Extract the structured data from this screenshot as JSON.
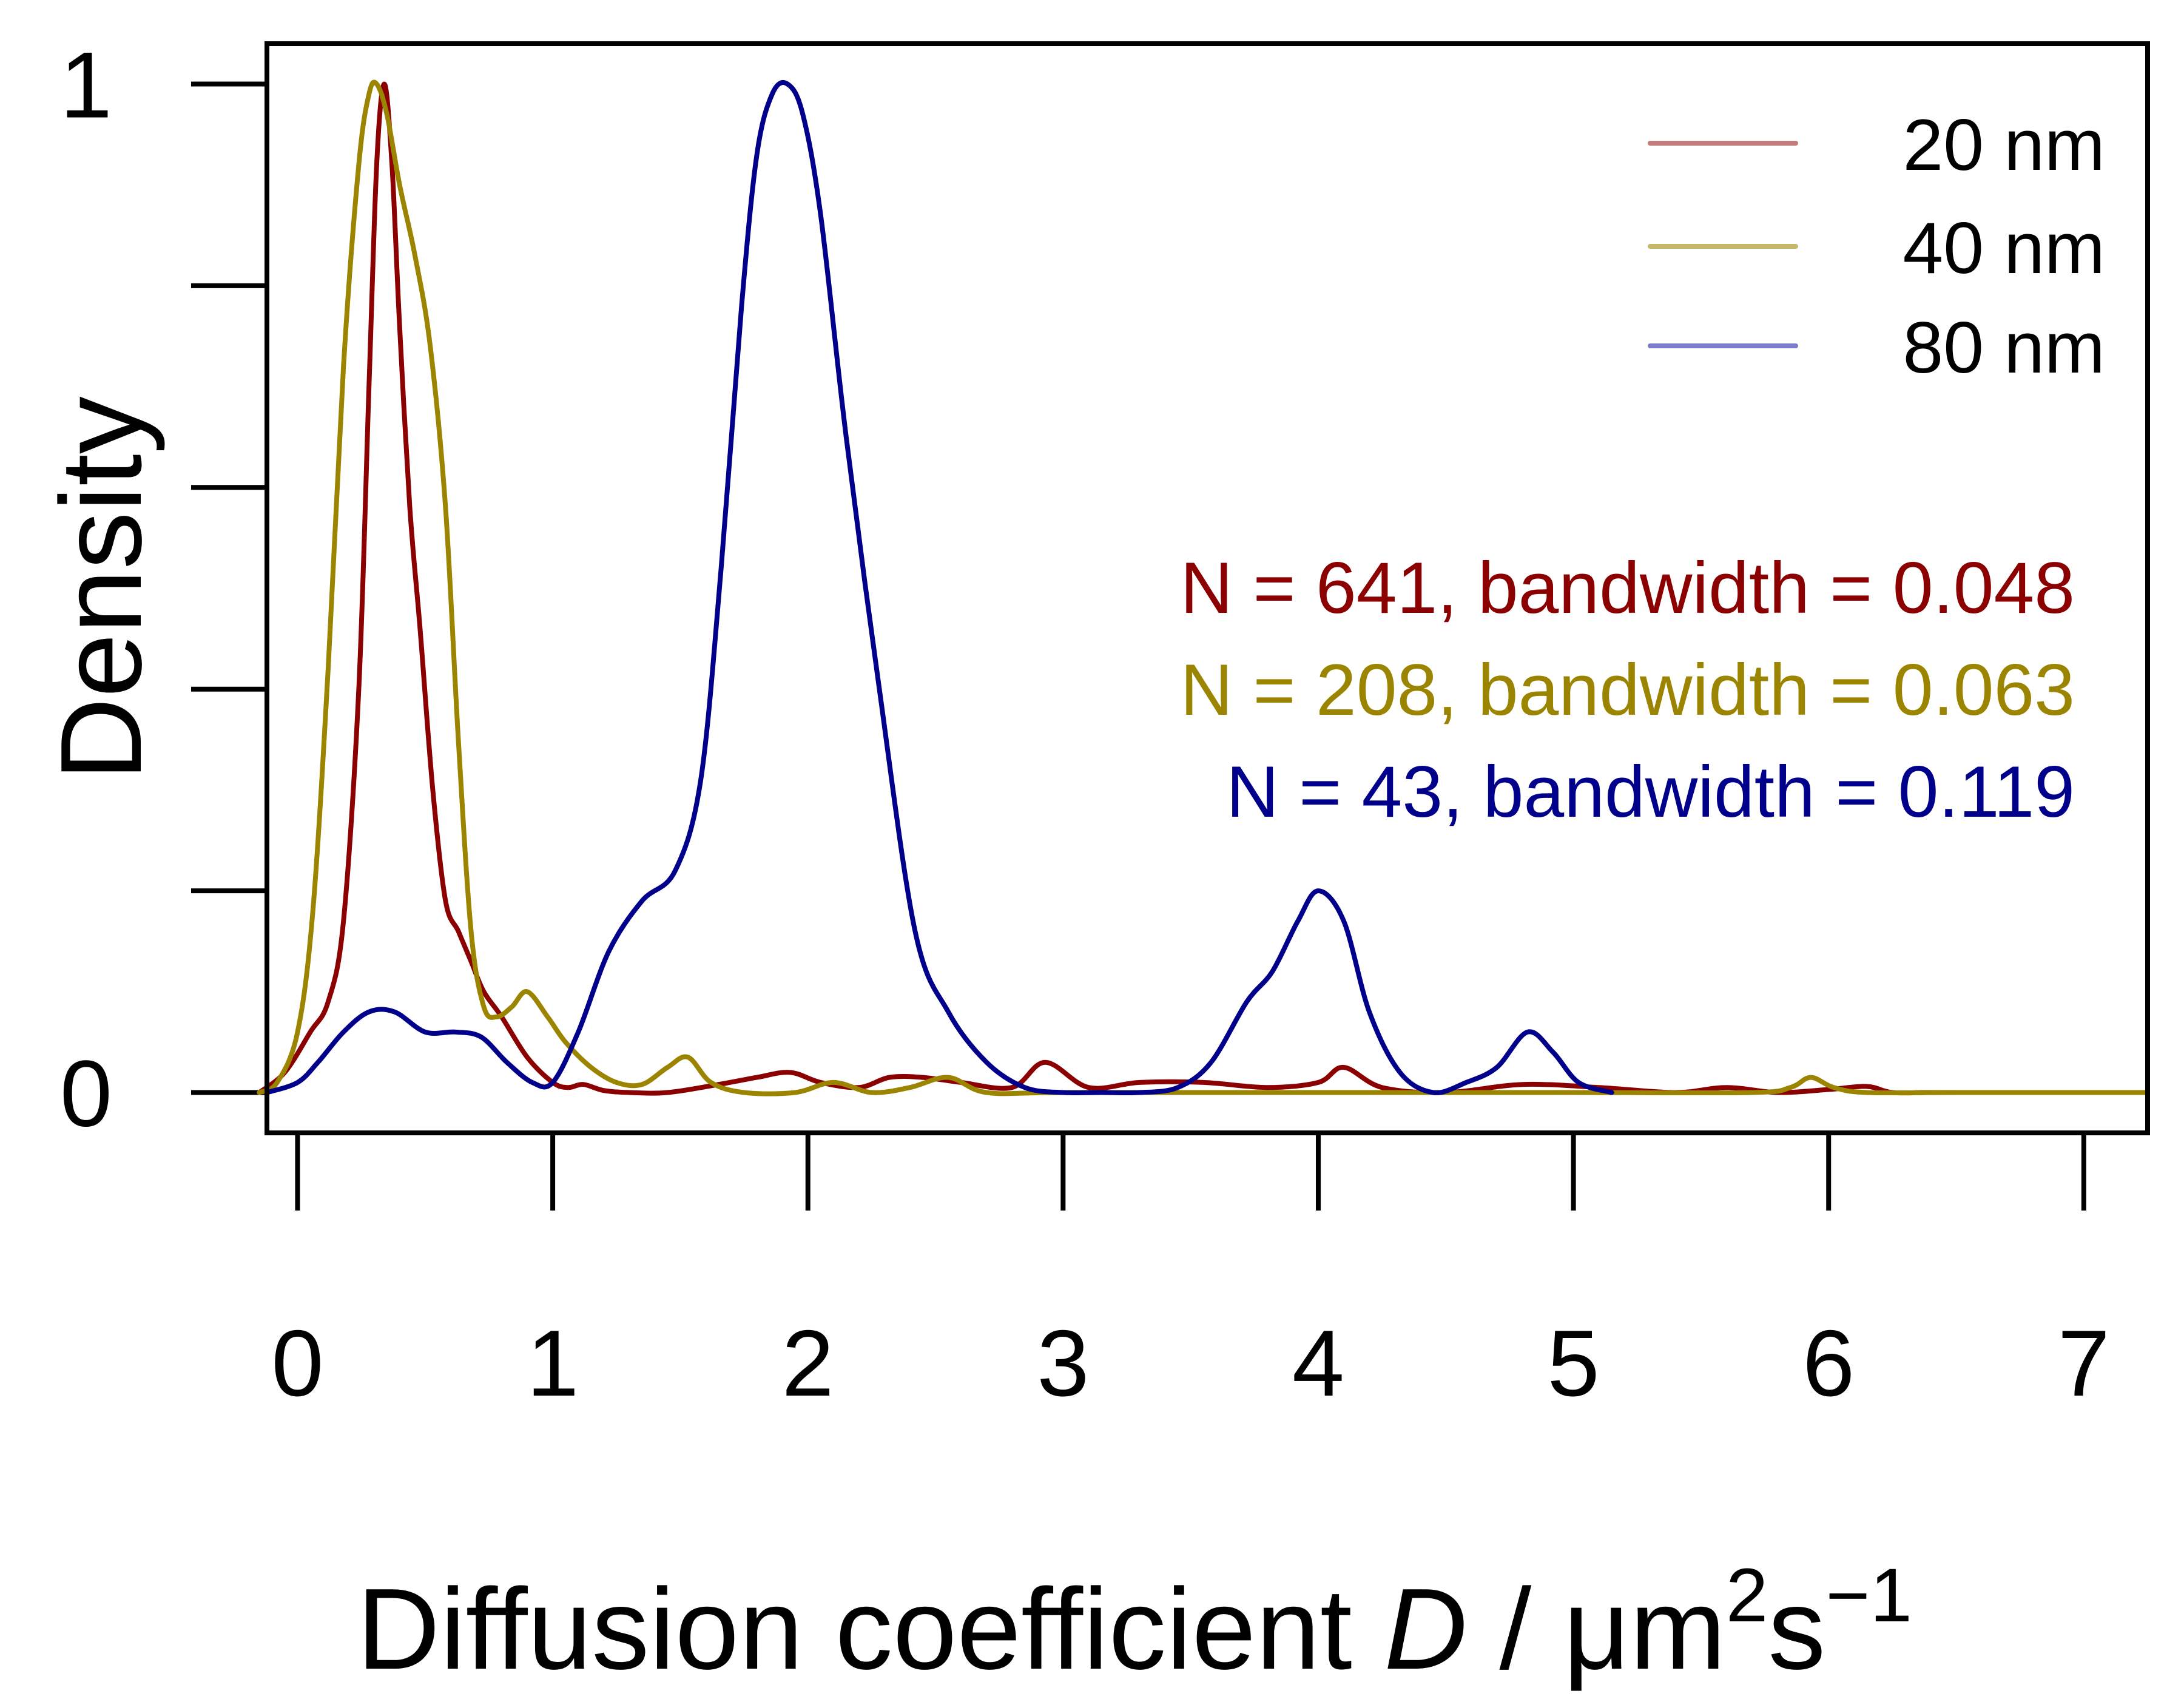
{
  "chart_data": {
    "type": "line",
    "title": "",
    "xlabel": {
      "text": "Diffusion coefficient D / μm²s⁻¹",
      "prefix": "Diffusion coefficient ",
      "variable": "D",
      "suffix_unit": " / μm",
      "sup_2": "2",
      "s_unit": "s",
      "sup_neg1": "−1"
    },
    "ylabel": "Density",
    "xlim": [
      -0.12,
      7.25
    ],
    "ylim": [
      -0.04,
      1.04
    ],
    "xticks": [
      {
        "value": 0,
        "label": "0"
      },
      {
        "value": 1,
        "label": "1"
      },
      {
        "value": 2,
        "label": "2"
      },
      {
        "value": 3,
        "label": "3"
      },
      {
        "value": 4,
        "label": "4"
      },
      {
        "value": 5,
        "label": "5"
      },
      {
        "value": 6,
        "label": "6"
      },
      {
        "value": 7,
        "label": "7"
      }
    ],
    "yticks": [
      {
        "value": 0,
        "label": "0"
      },
      {
        "value": 0.2,
        "label": ""
      },
      {
        "value": 0.4,
        "label": ""
      },
      {
        "value": 0.6,
        "label": ""
      },
      {
        "value": 0.8,
        "label": ""
      },
      {
        "value": 1,
        "label": "1"
      }
    ],
    "legend": {
      "position": "top-right",
      "entries": [
        {
          "label": "20 nm",
          "color": "#C47A7A"
        },
        {
          "label": "40 nm",
          "color": "#C4B86A"
        },
        {
          "label": "80 nm",
          "color": "#7A7EC8"
        }
      ]
    },
    "annotations": [
      {
        "text": "N = 641, bandwidth = 0.048",
        "color": "#8B0000"
      },
      {
        "text": "N = 208, bandwidth = 0.063",
        "color": "#9B8500"
      },
      {
        "text": "N = 43, bandwidth = 0.119",
        "color": "#00008B"
      }
    ],
    "series": [
      {
        "name": "20 nm",
        "color": "#8B0000",
        "x": [
          -0.15,
          -0.05,
          0.05,
          0.12,
          0.18,
          0.24,
          0.28,
          0.31,
          0.34,
          0.37,
          0.4,
          0.44,
          0.48,
          0.53,
          0.58,
          0.63,
          0.68,
          0.73,
          0.8,
          0.9,
          1.0,
          1.06,
          1.12,
          1.2,
          1.3,
          1.45,
          1.65,
          1.8,
          1.93,
          2.05,
          2.2,
          2.32,
          2.45,
          2.6,
          2.8,
          2.93,
          3.1,
          3.3,
          3.55,
          3.8,
          4.0,
          4.1,
          4.25,
          4.5,
          4.8,
          5.1,
          5.4,
          5.6,
          5.8,
          6.0,
          6.15,
          6.25,
          6.4,
          6.7,
          7.0,
          7.25
        ],
        "values": [
          0.0,
          0.02,
          0.06,
          0.09,
          0.17,
          0.4,
          0.7,
          0.92,
          1.0,
          0.92,
          0.76,
          0.58,
          0.46,
          0.3,
          0.19,
          0.16,
          0.13,
          0.1,
          0.075,
          0.035,
          0.01,
          0.005,
          0.008,
          0.002,
          0.0,
          0.0,
          0.008,
          0.015,
          0.02,
          0.01,
          0.005,
          0.015,
          0.015,
          0.01,
          0.005,
          0.03,
          0.005,
          0.01,
          0.01,
          0.005,
          0.01,
          0.025,
          0.005,
          0.0,
          0.008,
          0.005,
          0.0,
          0.005,
          0.0,
          0.003,
          0.006,
          0.0,
          0.0,
          0.0,
          0.0,
          0.0
        ]
      },
      {
        "name": "40 nm",
        "color": "#9B8500",
        "x": [
          -0.15,
          -0.08,
          0.0,
          0.06,
          0.12,
          0.18,
          0.24,
          0.28,
          0.31,
          0.35,
          0.4,
          0.46,
          0.52,
          0.58,
          0.63,
          0.68,
          0.73,
          0.78,
          0.84,
          0.9,
          0.98,
          1.05,
          1.15,
          1.25,
          1.35,
          1.45,
          1.53,
          1.62,
          1.75,
          1.95,
          2.1,
          2.25,
          2.4,
          2.55,
          2.7,
          3.0,
          4.0,
          5.0,
          5.7,
          5.85,
          5.93,
          6.02,
          6.15,
          6.5,
          7.25
        ],
        "values": [
          0.0,
          0.01,
          0.06,
          0.18,
          0.42,
          0.72,
          0.92,
          0.99,
          1.0,
          0.97,
          0.9,
          0.83,
          0.74,
          0.58,
          0.35,
          0.16,
          0.085,
          0.075,
          0.085,
          0.1,
          0.075,
          0.05,
          0.025,
          0.01,
          0.008,
          0.025,
          0.035,
          0.01,
          0.0,
          0.0,
          0.01,
          0.0,
          0.005,
          0.015,
          0.0,
          0.0,
          0.0,
          0.0,
          0.0,
          0.005,
          0.015,
          0.005,
          0.0,
          0.0,
          0.0
        ]
      },
      {
        "name": "80 nm",
        "color": "#00008B",
        "x": [
          -0.12,
          0.0,
          0.08,
          0.18,
          0.28,
          0.38,
          0.5,
          0.62,
          0.72,
          0.82,
          0.92,
          1.0,
          1.1,
          1.22,
          1.35,
          1.48,
          1.58,
          1.66,
          1.74,
          1.8,
          1.86,
          1.92,
          1.98,
          2.05,
          2.15,
          2.28,
          2.42,
          2.55,
          2.7,
          2.85,
          3.0,
          3.15,
          3.3,
          3.45,
          3.58,
          3.72,
          3.82,
          3.92,
          4.0,
          4.1,
          4.2,
          4.32,
          4.45,
          4.58,
          4.7,
          4.82,
          4.92,
          5.02,
          5.15
        ],
        "values": [
          0.0,
          0.01,
          0.03,
          0.06,
          0.08,
          0.08,
          0.06,
          0.06,
          0.055,
          0.03,
          0.01,
          0.01,
          0.06,
          0.14,
          0.19,
          0.22,
          0.31,
          0.52,
          0.78,
          0.93,
          0.99,
          1.0,
          0.97,
          0.87,
          0.65,
          0.4,
          0.16,
          0.08,
          0.03,
          0.005,
          0.0,
          0.0,
          0.0,
          0.005,
          0.03,
          0.09,
          0.12,
          0.17,
          0.2,
          0.17,
          0.08,
          0.02,
          0.0,
          0.01,
          0.025,
          0.06,
          0.04,
          0.01,
          0.0
        ]
      }
    ]
  }
}
